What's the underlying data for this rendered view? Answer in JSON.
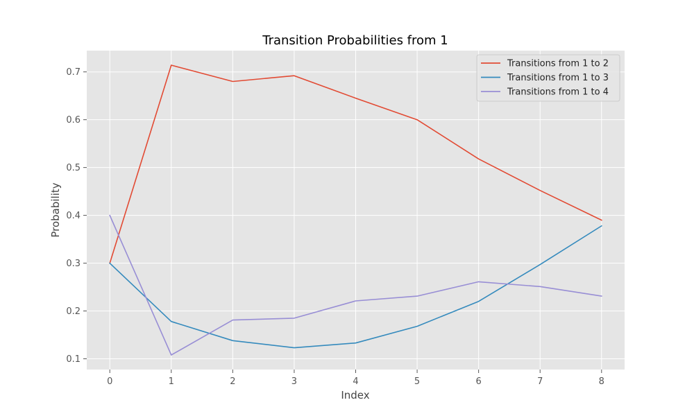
{
  "chart_data": {
    "type": "line",
    "title": "Transition Probabilities from 1",
    "xlabel": "Index",
    "ylabel": "Probability",
    "x": [
      0,
      1,
      2,
      3,
      4,
      5,
      6,
      7,
      8
    ],
    "xlim": [
      -0.375,
      8.375
    ],
    "ylim": [
      0.0775,
      0.7445
    ],
    "xticks": [
      0,
      1,
      2,
      3,
      4,
      5,
      6,
      7,
      8
    ],
    "yticks": [
      0.1,
      0.2,
      0.3,
      0.4,
      0.5,
      0.6,
      0.7
    ],
    "ytick_labels": [
      "0.1",
      "0.2",
      "0.3",
      "0.4",
      "0.5",
      "0.6",
      "0.7"
    ],
    "grid": true,
    "legend_position": "top-right",
    "series": [
      {
        "name": "Transitions from 1 to 2",
        "color": "#E24A33",
        "values": [
          0.3,
          0.714,
          0.68,
          0.692,
          0.645,
          0.6,
          0.518,
          0.452,
          0.39
        ]
      },
      {
        "name": "Transitions from 1 to 3",
        "color": "#348ABD",
        "values": [
          0.3,
          0.178,
          0.138,
          0.123,
          0.133,
          0.168,
          0.22,
          0.297,
          0.378
        ]
      },
      {
        "name": "Transitions from 1 to 4",
        "color": "#988ED5",
        "values": [
          0.4,
          0.108,
          0.181,
          0.185,
          0.221,
          0.231,
          0.261,
          0.251,
          0.231
        ]
      }
    ]
  }
}
